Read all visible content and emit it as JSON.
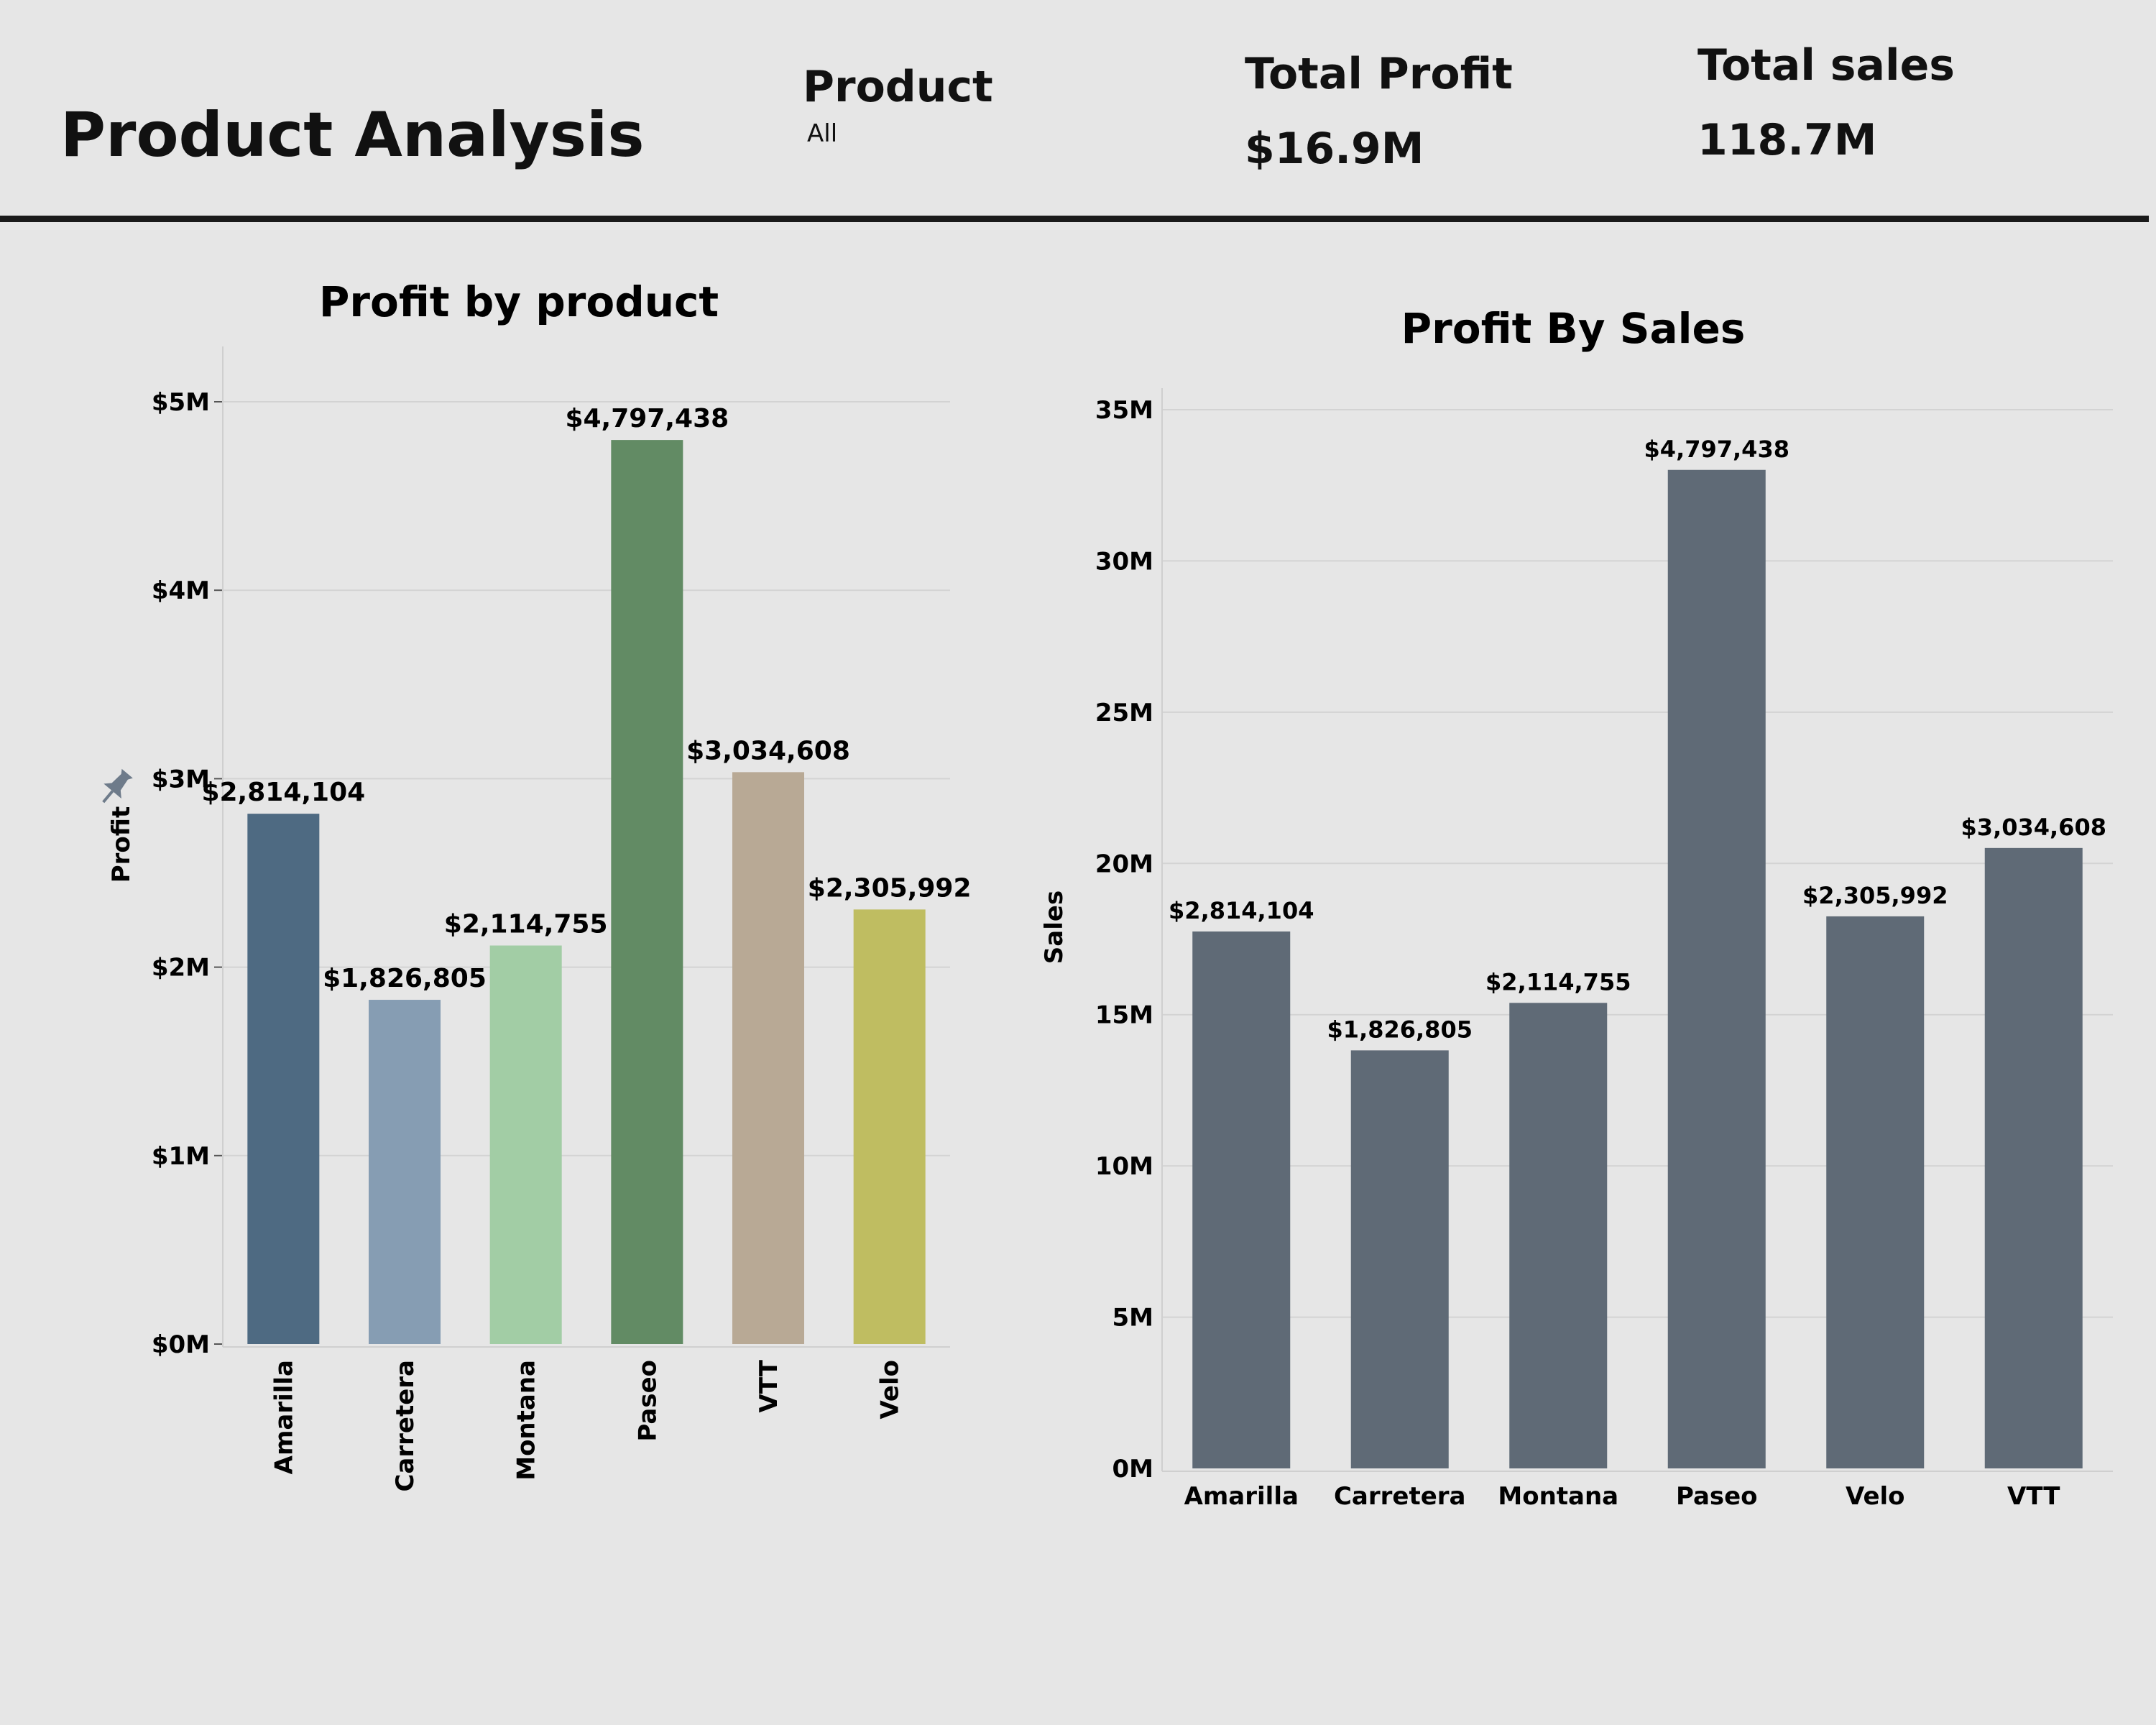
{
  "header": {
    "title": "Product Analysis",
    "filter_label": "Product",
    "filter_value": "All",
    "kpis": [
      {
        "label": "Total Profit",
        "value": "$16.9M"
      },
      {
        "label": "Total sales",
        "value": "118.7M"
      }
    ]
  },
  "chart_data": [
    {
      "type": "bar",
      "title": "Profit by product",
      "xlabel": "",
      "ylabel": "Profit",
      "ylim": [
        0,
        5000000
      ],
      "yticks": [
        0,
        1000000,
        2000000,
        3000000,
        4000000,
        5000000
      ],
      "ytick_labels": [
        "$0M",
        "$1M",
        "$2M",
        "$3M",
        "$4M",
        "$5M"
      ],
      "grid": true,
      "categories": [
        "Amarilla",
        "Carretera",
        "Montana",
        "Paseo",
        "VTT",
        "Velo"
      ],
      "values": [
        2814104,
        1826805,
        2114755,
        4797438,
        3034608,
        2305992
      ],
      "data_labels": [
        "$2,814,104",
        "$1,826,805",
        "$2,114,755",
        "$4,797,438",
        "$3,034,608",
        "$2,305,992"
      ],
      "colors": [
        "#4e6a82",
        "#869db3",
        "#a2cda5",
        "#628b64",
        "#b8a995",
        "#bfbd61"
      ],
      "x_tick_rotation": "vertical"
    },
    {
      "type": "bar",
      "title": "Profit By Sales",
      "xlabel": "",
      "ylabel": "Sales",
      "ylim": [
        0,
        35000000
      ],
      "yticks": [
        0,
        5000000,
        10000000,
        15000000,
        20000000,
        25000000,
        30000000,
        35000000
      ],
      "ytick_labels": [
        "0M",
        "5M",
        "10M",
        "15M",
        "20M",
        "25M",
        "30M",
        "35M"
      ],
      "grid": true,
      "categories": [
        "Amarilla",
        "Carretera",
        "Montana",
        "Paseo",
        "Velo",
        "VTT"
      ],
      "values": [
        17750000,
        13820000,
        15390000,
        33010000,
        18250000,
        20510000
      ],
      "data_labels": [
        "$2,814,104",
        "$1,826,805",
        "$2,114,755",
        "$4,797,438",
        "$2,305,992",
        "$3,034,608"
      ],
      "colors": [
        "#5f6a76"
      ]
    }
  ],
  "icons": {
    "ylabel_pin": "pin-icon"
  }
}
